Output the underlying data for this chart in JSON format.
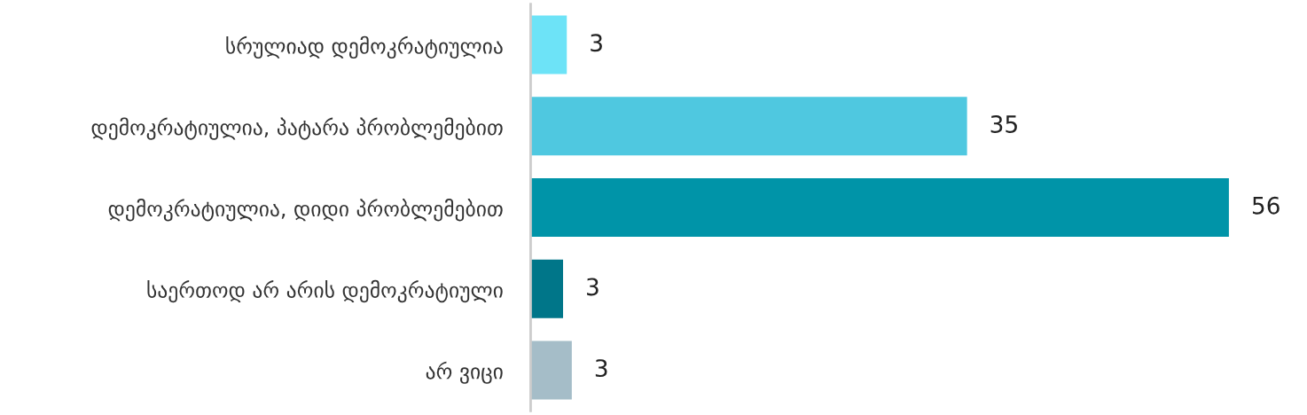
{
  "chart_data": {
    "type": "bar",
    "orientation": "horizontal",
    "categories": [
      "სრულიად დემოკრატიულია",
      "დემოკრატიულია, პატარა პრობლემებით",
      "დემოკრატიულია, დიდი პრობლემებით",
      "საერთოდ არ არის დემოკრატიული",
      "არ ვიცი"
    ],
    "values": [
      2.9,
      35,
      56,
      2.6,
      3.3
    ],
    "value_labels": [
      "3",
      "35",
      "56",
      "3",
      "3"
    ],
    "colors": [
      "#6de3f7",
      "#4fc8e0",
      "#0094a8",
      "#007689",
      "#a5bdc8"
    ],
    "tick_labels": "y",
    "grid": false,
    "legend": false
  }
}
